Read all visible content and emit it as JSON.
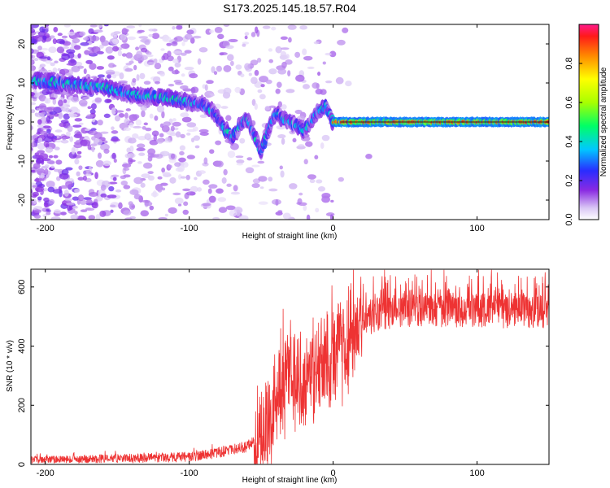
{
  "title": "S173.2025.145.18.57.R04",
  "chart_data": [
    {
      "type": "heatmap",
      "xlabel": "Height of straight line (km)",
      "ylabel": "Frequency (Hz)",
      "xlim": [
        -210,
        150
      ],
      "ylim": [
        -25,
        25
      ],
      "xticks": [
        -200,
        -100,
        0,
        100
      ],
      "yticks": [
        -20,
        -10,
        0,
        10,
        20
      ],
      "colorbar": {
        "label": "Normalized spectral amplitude",
        "range": [
          0,
          1
        ],
        "ticks": [
          0.0,
          0.2,
          0.4,
          0.6,
          0.8
        ]
      },
      "ridge": {
        "x": [
          -205,
          -190,
          -175,
          -160,
          -150,
          -140,
          -125,
          -110,
          -100,
          -90,
          -85,
          -80,
          -75,
          -70,
          -65,
          -60,
          -55,
          -50,
          -45,
          -40,
          -35,
          -30,
          -25,
          -20,
          -15,
          -10,
          -5,
          0,
          10,
          20,
          50,
          100,
          150
        ],
        "y": [
          10.5,
          10,
          9.5,
          9,
          8,
          7,
          6.5,
          6,
          5,
          4.5,
          3,
          1,
          -2,
          -4,
          -1,
          1,
          -3,
          -8,
          -2,
          2,
          1,
          0,
          -1,
          -2,
          0,
          3,
          4,
          0,
          0,
          0,
          0,
          0,
          0
        ]
      }
    },
    {
      "type": "line",
      "xlabel": "Height of straight line (km)",
      "ylabel": "SNR (10 * v/v)",
      "xlim": [
        -210,
        150
      ],
      "ylim": [
        0,
        660
      ],
      "xticks": [
        -200,
        -100,
        0,
        100
      ],
      "yticks": [
        0,
        200,
        400,
        600
      ],
      "color": "#ee3333",
      "envelope": {
        "x": [
          -210,
          -150,
          -100,
          -80,
          -60,
          -50,
          -45,
          -40,
          -35,
          -30,
          -25,
          -20,
          -10,
          0,
          10,
          15,
          20,
          30,
          50,
          100,
          150
        ],
        "y": [
          15,
          20,
          25,
          40,
          60,
          100,
          160,
          220,
          270,
          300,
          280,
          300,
          330,
          380,
          420,
          460,
          480,
          510,
          525,
          520,
          520
        ]
      }
    }
  ]
}
